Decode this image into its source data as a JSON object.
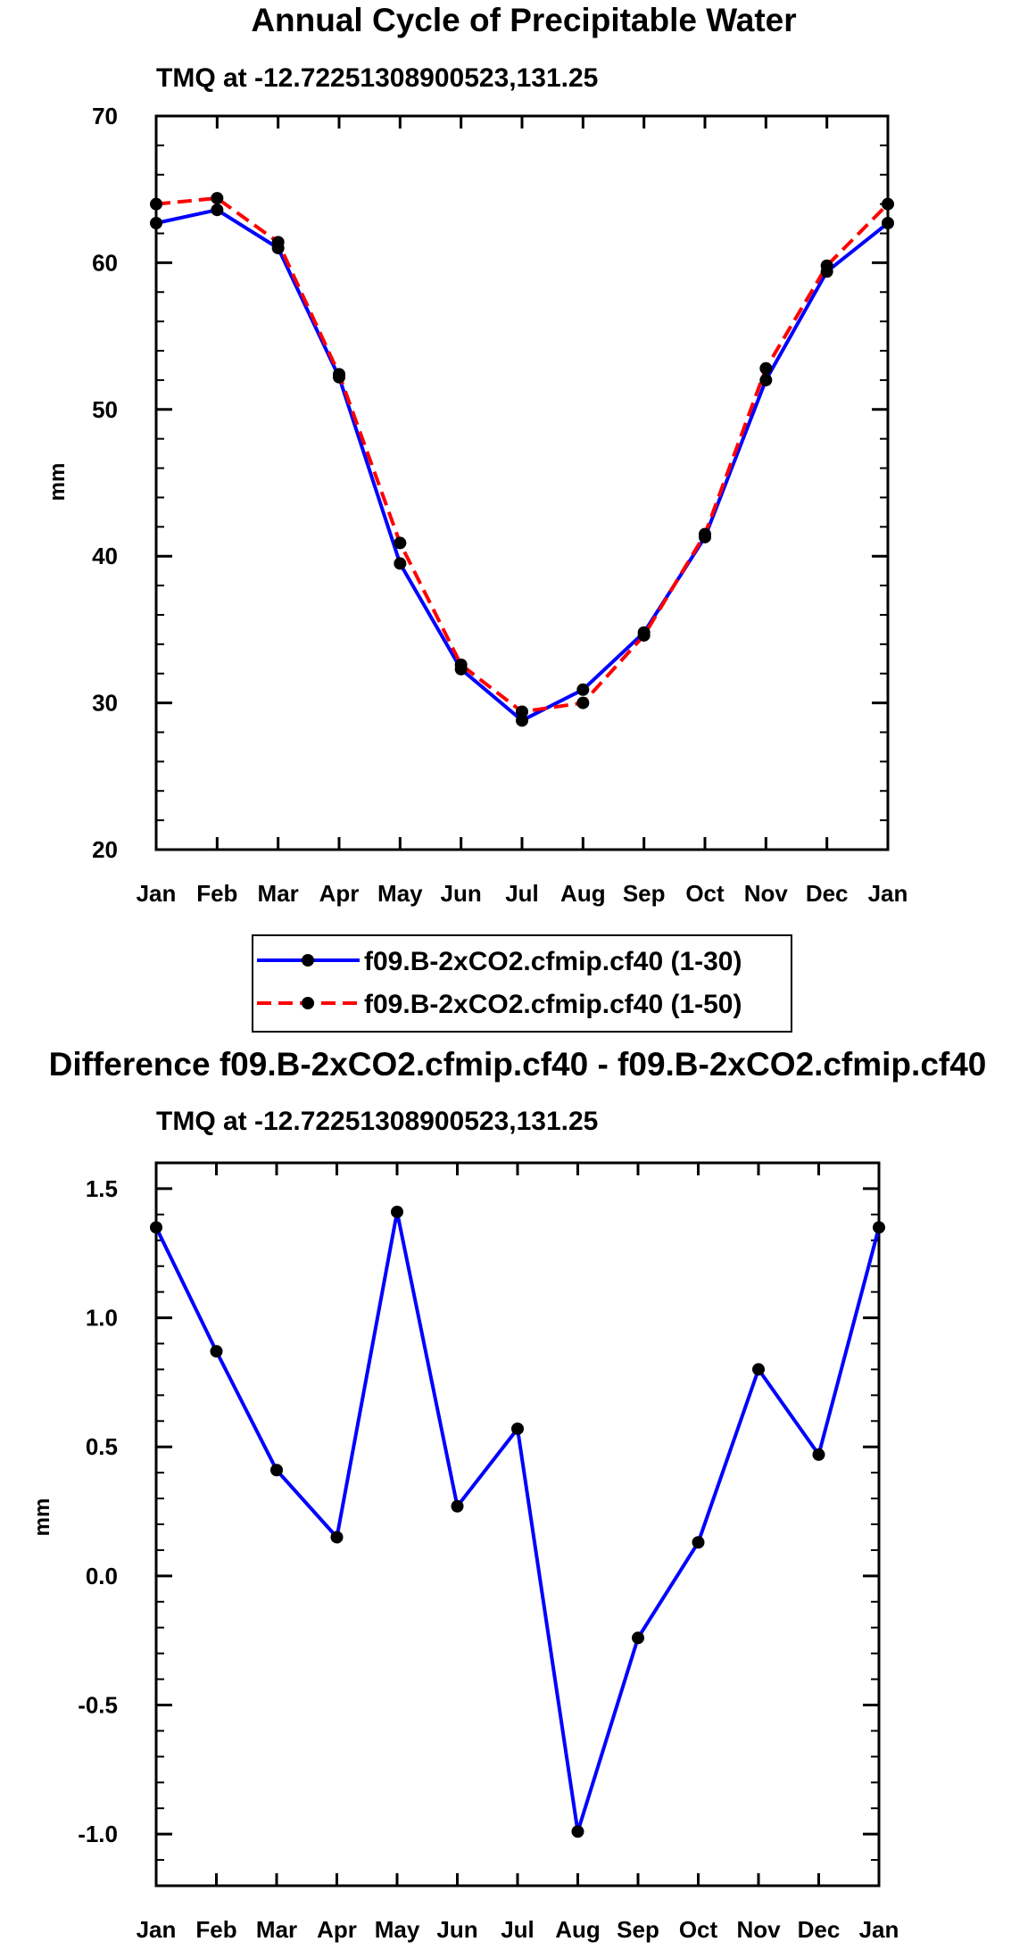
{
  "chart_data": [
    {
      "type": "line",
      "title": "Annual Cycle of Precipitable Water",
      "subtitle": "TMQ at -12.72251308900523,131.25",
      "xlabel": "",
      "ylabel": "mm",
      "ylim": [
        20,
        70
      ],
      "yticks": [
        20,
        30,
        40,
        50,
        60,
        70
      ],
      "ytick_labels": [
        "20",
        "30",
        "40",
        "50",
        "60",
        "70"
      ],
      "categories": [
        "Jan",
        "Feb",
        "Mar",
        "Apr",
        "May",
        "Jun",
        "Jul",
        "Aug",
        "Sep",
        "Oct",
        "Nov",
        "Dec",
        "Jan"
      ],
      "series": [
        {
          "name": "f09.B-2xCO2.cfmip.cf40 (1-30)",
          "color": "#0000ff",
          "dash": "solid",
          "values": [
            62.7,
            63.6,
            61.0,
            52.2,
            39.5,
            32.3,
            28.8,
            30.9,
            34.8,
            41.3,
            52.0,
            59.4,
            62.7
          ]
        },
        {
          "name": "f09.B-2xCO2.cfmip.cf40 (1-50)",
          "color": "#ff0000",
          "dash": "dashed",
          "values": [
            64.0,
            64.4,
            61.4,
            52.4,
            40.9,
            32.6,
            29.4,
            30.0,
            34.6,
            41.5,
            52.8,
            59.8,
            64.0
          ]
        }
      ],
      "legend": "below"
    },
    {
      "type": "line",
      "title": "Difference f09.B-2xCO2.cfmip.cf40 - f09.B-2xCO2.cfmip.cf40",
      "subtitle": "TMQ at -12.72251308900523,131.25",
      "xlabel": "",
      "ylabel": "mm",
      "ylim": [
        -1.2,
        1.6
      ],
      "yticks": [
        -1.0,
        -0.5,
        0.0,
        0.5,
        1.0,
        1.5
      ],
      "ytick_labels": [
        "-1.0",
        "-0.5",
        "0.0",
        "0.5",
        "1.0",
        "1.5"
      ],
      "categories": [
        "Jan",
        "Feb",
        "Mar",
        "Apr",
        "May",
        "Jun",
        "Jul",
        "Aug",
        "Sep",
        "Oct",
        "Nov",
        "Dec",
        "Jan"
      ],
      "series": [
        {
          "name": "difference",
          "color": "#0000ff",
          "dash": "solid",
          "values": [
            1.35,
            0.87,
            0.41,
            0.15,
            1.41,
            0.27,
            0.57,
            -0.99,
            -0.24,
            0.13,
            0.8,
            0.47,
            1.35
          ]
        }
      ]
    }
  ]
}
